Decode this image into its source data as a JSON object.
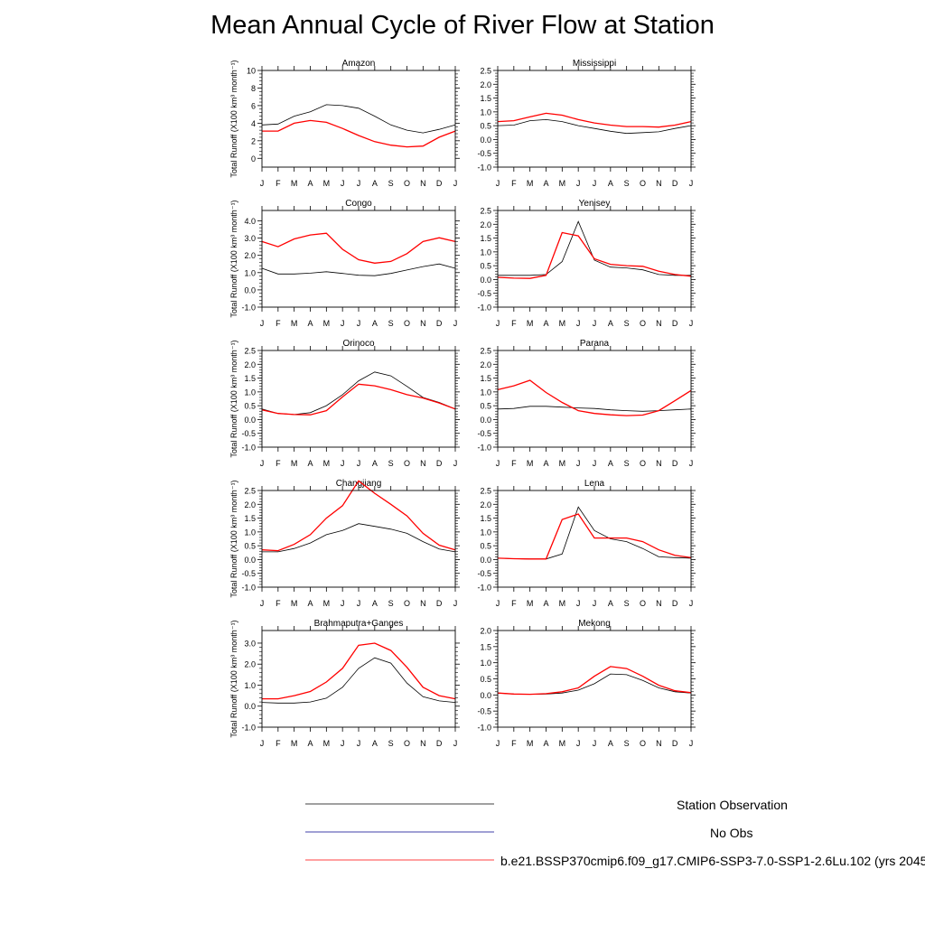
{
  "page": {
    "title": "Mean Annual Cycle of River Flow at Station"
  },
  "colors": {
    "observation": "#000000",
    "no_obs": "#00008b",
    "model": "#ff0000"
  },
  "chart_data": [
    {
      "type": "line",
      "title": "Amazon",
      "ylabel": "Total Runoff (X100 km³ month⁻¹)",
      "x": [
        "J",
        "F",
        "M",
        "A",
        "M",
        "J",
        "J",
        "A",
        "S",
        "O",
        "N",
        "D",
        "J"
      ],
      "ylim": [
        -1,
        10
      ],
      "yticks": [
        0,
        2,
        4,
        6,
        8,
        10
      ],
      "ytick_labels": [
        "0",
        "2",
        "4",
        "6",
        "8",
        "10"
      ],
      "series": [
        {
          "name": "Station Observation",
          "values": [
            3.8,
            3.9,
            4.8,
            5.3,
            6.1,
            6.0,
            5.7,
            4.8,
            3.8,
            3.2,
            2.9,
            3.3,
            3.8
          ]
        },
        {
          "name": "b.e21.BSSP370cmip6.f09_g17.CMIP6-SSP3-7.0-SSP1-2.6Lu.102 (yrs 2045",
          "values": [
            3.1,
            3.1,
            4.0,
            4.3,
            4.1,
            3.4,
            2.6,
            1.9,
            1.5,
            1.3,
            1.4,
            2.4,
            3.1
          ]
        }
      ]
    },
    {
      "type": "line",
      "title": "Mississippi",
      "ylabel": "",
      "x": [
        "J",
        "F",
        "M",
        "A",
        "M",
        "J",
        "J",
        "A",
        "S",
        "O",
        "N",
        "D",
        "J"
      ],
      "ylim": [
        -1,
        2.5
      ],
      "yticks": [
        -1,
        -0.5,
        0,
        0.5,
        1,
        1.5,
        2,
        2.5
      ],
      "ytick_labels": [
        "-1.0",
        "-0.5",
        "0.0",
        "0.5",
        "1.0",
        "1.5",
        "2.0",
        "2.5"
      ],
      "series": [
        {
          "name": "Station Observation",
          "values": [
            0.5,
            0.52,
            0.68,
            0.72,
            0.65,
            0.5,
            0.4,
            0.3,
            0.22,
            0.25,
            0.28,
            0.4,
            0.5
          ]
        },
        {
          "name": "b.e21.BSSP370cmip6.f09_g17.CMIP6-SSP3-7.0-SSP1-2.6Lu.102 (yrs 2045",
          "values": [
            0.65,
            0.68,
            0.82,
            0.95,
            0.88,
            0.72,
            0.6,
            0.52,
            0.47,
            0.47,
            0.45,
            0.52,
            0.65
          ]
        }
      ]
    },
    {
      "type": "line",
      "title": "Congo",
      "ylabel": "Total Runoff (X100 km³ month⁻¹)",
      "x": [
        "J",
        "F",
        "M",
        "A",
        "M",
        "J",
        "J",
        "A",
        "S",
        "O",
        "N",
        "D",
        "J"
      ],
      "ylim": [
        -1,
        4.6
      ],
      "yticks": [
        -1,
        0,
        1,
        2,
        3,
        4
      ],
      "ytick_labels": [
        "-1.0",
        "0.0",
        "1.0",
        "2.0",
        "3.0",
        "4.0"
      ],
      "series": [
        {
          "name": "Station Observation",
          "values": [
            1.25,
            0.92,
            0.92,
            0.97,
            1.05,
            0.95,
            0.85,
            0.82,
            0.95,
            1.15,
            1.35,
            1.5,
            1.25
          ]
        },
        {
          "name": "b.e21.BSSP370cmip6.f09_g17.CMIP6-SSP3-7.0-SSP1-2.6Lu.102 (yrs 2045",
          "values": [
            2.8,
            2.5,
            2.95,
            3.18,
            3.28,
            2.35,
            1.75,
            1.55,
            1.65,
            2.1,
            2.8,
            3.02,
            2.8
          ]
        }
      ]
    },
    {
      "type": "line",
      "title": "Yenisey",
      "ylabel": "",
      "x": [
        "J",
        "F",
        "M",
        "A",
        "M",
        "J",
        "J",
        "A",
        "S",
        "O",
        "N",
        "D",
        "J"
      ],
      "ylim": [
        -1,
        2.5
      ],
      "yticks": [
        -1,
        -0.5,
        0,
        0.5,
        1,
        1.5,
        2,
        2.5
      ],
      "ytick_labels": [
        "-1.0",
        "-0.5",
        "0.0",
        "0.5",
        "1.0",
        "1.5",
        "2.0",
        "2.5"
      ],
      "series": [
        {
          "name": "Station Observation",
          "values": [
            0.15,
            0.15,
            0.15,
            0.18,
            0.65,
            2.1,
            0.7,
            0.45,
            0.42,
            0.35,
            0.18,
            0.15,
            0.15
          ]
        },
        {
          "name": "b.e21.BSSP370cmip6.f09_g17.CMIP6-SSP3-7.0-SSP1-2.6Lu.102 (yrs 2045",
          "values": [
            0.08,
            0.05,
            0.04,
            0.15,
            1.7,
            1.58,
            0.75,
            0.55,
            0.5,
            0.48,
            0.3,
            0.18,
            0.12
          ]
        }
      ]
    },
    {
      "type": "line",
      "title": "Orinoco",
      "ylabel": "Total Runoff (X100 km³ month⁻¹)",
      "x": [
        "J",
        "F",
        "M",
        "A",
        "M",
        "J",
        "J",
        "A",
        "S",
        "O",
        "N",
        "D",
        "J"
      ],
      "ylim": [
        -1,
        2.5
      ],
      "yticks": [
        -1,
        -0.5,
        0,
        0.5,
        1,
        1.5,
        2,
        2.5
      ],
      "ytick_labels": [
        "-1.0",
        "-0.5",
        "0.0",
        "0.5",
        "1.0",
        "1.5",
        "2.0",
        "2.5"
      ],
      "series": [
        {
          "name": "Station Observation",
          "values": [
            0.38,
            0.22,
            0.18,
            0.25,
            0.5,
            0.9,
            1.4,
            1.72,
            1.58,
            1.2,
            0.8,
            0.62,
            0.38
          ]
        },
        {
          "name": "b.e21.BSSP370cmip6.f09_g17.CMIP6-SSP3-7.0-SSP1-2.6Lu.102 (yrs 2045",
          "values": [
            0.35,
            0.22,
            0.18,
            0.17,
            0.32,
            0.82,
            1.28,
            1.22,
            1.08,
            0.9,
            0.78,
            0.6,
            0.38
          ]
        }
      ]
    },
    {
      "type": "line",
      "title": "Parana",
      "ylabel": "",
      "x": [
        "J",
        "F",
        "M",
        "A",
        "M",
        "J",
        "J",
        "A",
        "S",
        "O",
        "N",
        "D",
        "J"
      ],
      "ylim": [
        -1,
        2.5
      ],
      "yticks": [
        -1,
        -0.5,
        0,
        0.5,
        1,
        1.5,
        2,
        2.5
      ],
      "ytick_labels": [
        "-1.0",
        "-0.5",
        "0.0",
        "0.5",
        "1.0",
        "1.5",
        "2.0",
        "2.5"
      ],
      "series": [
        {
          "name": "Station Observation",
          "values": [
            0.38,
            0.4,
            0.48,
            0.48,
            0.45,
            0.42,
            0.4,
            0.35,
            0.32,
            0.3,
            0.32,
            0.35,
            0.38
          ]
        },
        {
          "name": "b.e21.BSSP370cmip6.f09_g17.CMIP6-SSP3-7.0-SSP1-2.6Lu.102 (yrs 2045",
          "values": [
            1.08,
            1.22,
            1.42,
            0.98,
            0.62,
            0.32,
            0.22,
            0.17,
            0.14,
            0.16,
            0.32,
            0.68,
            1.05
          ]
        }
      ]
    },
    {
      "type": "line",
      "title": "Changjiang",
      "ylabel": "Total Runoff (X100 km³ month⁻¹)",
      "x": [
        "J",
        "F",
        "M",
        "A",
        "M",
        "J",
        "J",
        "A",
        "S",
        "O",
        "N",
        "D",
        "J"
      ],
      "ylim": [
        -1,
        2.5
      ],
      "yticks": [
        -1,
        -0.5,
        0,
        0.5,
        1,
        1.5,
        2,
        2.5
      ],
      "ytick_labels": [
        "-1.0",
        "-0.5",
        "0.0",
        "0.5",
        "1.0",
        "1.5",
        "2.0",
        "2.5"
      ],
      "series": [
        {
          "name": "Station Observation",
          "values": [
            0.28,
            0.28,
            0.4,
            0.6,
            0.9,
            1.05,
            1.3,
            1.2,
            1.1,
            0.95,
            0.65,
            0.38,
            0.28
          ]
        },
        {
          "name": "b.e21.BSSP370cmip6.f09_g17.CMIP6-SSP3-7.0-SSP1-2.6Lu.102 (yrs 2045",
          "values": [
            0.35,
            0.32,
            0.55,
            0.9,
            1.5,
            1.95,
            2.85,
            2.4,
            2.0,
            1.58,
            0.95,
            0.52,
            0.35
          ]
        }
      ]
    },
    {
      "type": "line",
      "title": "Lena",
      "ylabel": "",
      "x": [
        "J",
        "F",
        "M",
        "A",
        "M",
        "J",
        "J",
        "A",
        "S",
        "O",
        "N",
        "D",
        "J"
      ],
      "ylim": [
        -1,
        2.5
      ],
      "yticks": [
        -1,
        -0.5,
        0,
        0.5,
        1,
        1.5,
        2,
        2.5
      ],
      "ytick_labels": [
        "-1.0",
        "-0.5",
        "0.0",
        "0.5",
        "1.0",
        "1.5",
        "2.0",
        "2.5"
      ],
      "series": [
        {
          "name": "Station Observation",
          "values": [
            0.05,
            0.03,
            0.02,
            0.02,
            0.2,
            1.9,
            1.05,
            0.75,
            0.65,
            0.4,
            0.1,
            0.07,
            0.05
          ]
        },
        {
          "name": "b.e21.BSSP370cmip6.f09_g17.CMIP6-SSP3-7.0-SSP1-2.6Lu.102 (yrs 2045",
          "values": [
            0.05,
            0.03,
            0.02,
            0.02,
            1.45,
            1.65,
            0.78,
            0.78,
            0.78,
            0.65,
            0.35,
            0.15,
            0.07
          ]
        }
      ]
    },
    {
      "type": "line",
      "title": "Brahmaputra+Ganges",
      "ylabel": "Total Runoff (X100 km³ month⁻¹)",
      "x": [
        "J",
        "F",
        "M",
        "A",
        "M",
        "J",
        "J",
        "A",
        "S",
        "O",
        "N",
        "D",
        "J"
      ],
      "ylim": [
        -1,
        3.6
      ],
      "yticks": [
        -1,
        0,
        1,
        2,
        3
      ],
      "ytick_labels": [
        "-1.0",
        "0.0",
        "1.0",
        "2.0",
        "3.0"
      ],
      "series": [
        {
          "name": "Station Observation",
          "values": [
            0.18,
            0.15,
            0.15,
            0.2,
            0.38,
            0.9,
            1.8,
            2.3,
            2.05,
            1.1,
            0.45,
            0.25,
            0.18
          ]
        },
        {
          "name": "b.e21.BSSP370cmip6.f09_g17.CMIP6-SSP3-7.0-SSP1-2.6Lu.102 (yrs 2045",
          "values": [
            0.35,
            0.35,
            0.5,
            0.7,
            1.15,
            1.8,
            2.9,
            3.0,
            2.65,
            1.85,
            0.9,
            0.5,
            0.35
          ]
        }
      ]
    },
    {
      "type": "line",
      "title": "Mekong",
      "ylabel": "",
      "x": [
        "J",
        "F",
        "M",
        "A",
        "M",
        "J",
        "J",
        "A",
        "S",
        "O",
        "N",
        "D",
        "J"
      ],
      "ylim": [
        -1,
        2.0
      ],
      "yticks": [
        -1,
        -0.5,
        0,
        0.5,
        1,
        1.5,
        2
      ],
      "ytick_labels": [
        "-1.0",
        "-0.5",
        "0.0",
        "0.5",
        "1.0",
        "1.5",
        "2.0"
      ],
      "series": [
        {
          "name": "Station Observation",
          "values": [
            0.06,
            0.03,
            0.02,
            0.03,
            0.06,
            0.15,
            0.35,
            0.65,
            0.63,
            0.45,
            0.22,
            0.1,
            0.06
          ]
        },
        {
          "name": "b.e21.BSSP370cmip6.f09_g17.CMIP6-SSP3-7.0-SSP1-2.6Lu.102 (yrs 2045",
          "values": [
            0.06,
            0.03,
            0.02,
            0.04,
            0.1,
            0.22,
            0.58,
            0.88,
            0.82,
            0.58,
            0.3,
            0.13,
            0.07
          ]
        }
      ]
    }
  ],
  "legend": {
    "items": [
      {
        "label": "Station Observation",
        "color": "#000000"
      },
      {
        "label": "No Obs",
        "color": "#00008b"
      },
      {
        "label": "b.e21.BSSP370cmip6.f09_g17.CMIP6-SSP3-7.0-SSP1-2.6Lu.102 (yrs 2045",
        "color": "#ff0000"
      }
    ]
  }
}
